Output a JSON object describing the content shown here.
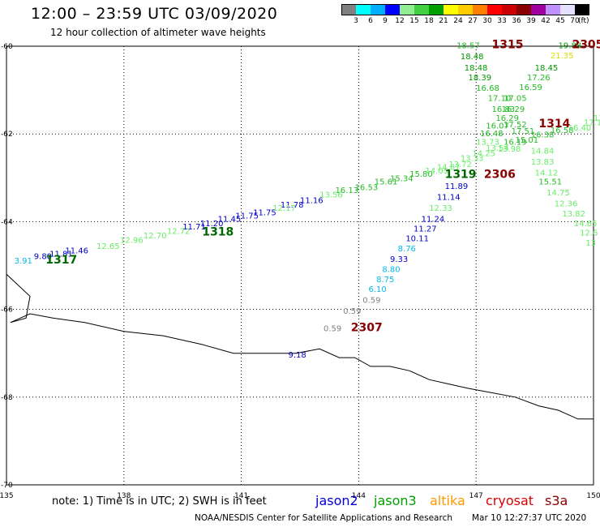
{
  "header": {
    "title": "12:00 – 23:59 UTC 03/09/2020",
    "subtitle": "12 hour collection of altimeter wave heights"
  },
  "colorbar": {
    "swatches": [
      "#808080",
      "#00ffff",
      "#00b0ff",
      "#0000ff",
      "#90ee90",
      "#40d040",
      "#00a000",
      "#ffff00",
      "#ffcc00",
      "#ff8000",
      "#ff0000",
      "#cc0000",
      "#8b0000",
      "#a000a0",
      "#c090ff",
      "#e6e0ff",
      "#000000"
    ],
    "ticks": [
      "3",
      "6",
      "9",
      "12",
      "15",
      "18",
      "21",
      "24",
      "27",
      "30",
      "33",
      "36",
      "39",
      "42",
      "45",
      "70"
    ],
    "unit": "(ft)"
  },
  "footer": {
    "note": "note:  1) Time is in UTC;  2) SWH is in feet",
    "satellites": [
      {
        "label": "jason2",
        "color": "#0000dd"
      },
      {
        "label": "jason3",
        "color": "#00a000"
      },
      {
        "label": "altika",
        "color": "#ff9900"
      },
      {
        "label": "cryosat",
        "color": "#dd0000"
      },
      {
        "label": "s3a",
        "color": "#880000"
      }
    ],
    "credit": "NOAA/NESDIS Center for Satellite Applications and Research",
    "timestamp": "Mar 10 12:27:37 UTC 2020"
  },
  "chart_data": {
    "type": "scatter",
    "title": "12:00 – 23:59 UTC 03/09/2020",
    "subtitle": "12 hour collection of altimeter wave heights",
    "unit": "ft",
    "xlim": [
      135,
      150
    ],
    "ylim": [
      -70,
      -60
    ],
    "x_ticks": [
      "135",
      "138",
      "141",
      "144",
      "147",
      "150"
    ],
    "y_ticks": [
      "-60",
      "-62",
      "-64",
      "-66",
      "-68",
      "-70"
    ],
    "grid": true,
    "coastline": [
      [
        135,
        -65.2
      ],
      [
        135.6,
        -65.7
      ],
      [
        135.5,
        -66.2
      ],
      [
        135.1,
        -66.3
      ],
      [
        135.6,
        -66.1
      ],
      [
        136.2,
        -66.2
      ],
      [
        137,
        -66.3
      ],
      [
        138,
        -66.5
      ],
      [
        139,
        -66.6
      ],
      [
        140,
        -66.8
      ],
      [
        140.8,
        -67.0
      ],
      [
        141.6,
        -67.0
      ],
      [
        142.4,
        -67.0
      ],
      [
        143.0,
        -66.9
      ],
      [
        143.5,
        -67.1
      ],
      [
        143.9,
        -67.1
      ],
      [
        144.3,
        -67.3
      ],
      [
        144.8,
        -67.3
      ],
      [
        145.3,
        -67.4
      ],
      [
        145.8,
        -67.6
      ],
      [
        146.3,
        -67.7
      ],
      [
        146.8,
        -67.8
      ],
      [
        147.4,
        -67.9
      ],
      [
        148.0,
        -68.0
      ],
      [
        148.6,
        -68.2
      ],
      [
        149.1,
        -68.3
      ],
      [
        149.6,
        -68.5
      ],
      [
        150,
        -68.5
      ]
    ],
    "labels": [
      {
        "text": "3.91",
        "lon": 135.2,
        "lat": -64.95,
        "color": "#00bbee"
      },
      {
        "text": "9.80",
        "lon": 135.7,
        "lat": -64.85,
        "color": "#0000cc"
      },
      {
        "text": "11.81",
        "lon": 136.1,
        "lat": -64.8,
        "color": "#0000cc"
      },
      {
        "text": "11.46",
        "lon": 136.5,
        "lat": -64.72,
        "color": "#0000cc"
      },
      {
        "text": "1317",
        "lon": 136,
        "lat": -64.95,
        "color": "#006600",
        "size": 14,
        "weight": "bold"
      },
      {
        "text": "12.65",
        "lon": 137.3,
        "lat": -64.62,
        "color": "#66ee66"
      },
      {
        "text": "12.96",
        "lon": 137.9,
        "lat": -64.48,
        "color": "#66ee66"
      },
      {
        "text": "12.70",
        "lon": 138.5,
        "lat": -64.38,
        "color": "#66ee66"
      },
      {
        "text": "12.72",
        "lon": 139.1,
        "lat": -64.28,
        "color": "#66ee66"
      },
      {
        "text": "11.71",
        "lon": 139.5,
        "lat": -64.18,
        "color": "#0000cc"
      },
      {
        "text": "11.20",
        "lon": 139.95,
        "lat": -64.1,
        "color": "#0000cc"
      },
      {
        "text": "1318",
        "lon": 140.0,
        "lat": -64.32,
        "color": "#006600",
        "size": 14,
        "weight": "bold"
      },
      {
        "text": "11.45",
        "lon": 140.4,
        "lat": -64.0,
        "color": "#0000cc"
      },
      {
        "text": "11.75",
        "lon": 140.85,
        "lat": -63.93,
        "color": "#0000cc"
      },
      {
        "text": "11.75",
        "lon": 141.3,
        "lat": -63.85,
        "color": "#0000cc"
      },
      {
        "text": "11.78",
        "lon": 142.0,
        "lat": -63.68,
        "color": "#0000cc"
      },
      {
        "text": "12.17",
        "lon": 141.8,
        "lat": -63.75,
        "color": "#66ee66"
      },
      {
        "text": "11.16",
        "lon": 142.5,
        "lat": -63.58,
        "color": "#0000cc"
      },
      {
        "text": "13.56",
        "lon": 143.0,
        "lat": -63.45,
        "color": "#66ee66"
      },
      {
        "text": "16.13",
        "lon": 143.4,
        "lat": -63.35,
        "color": "#22bb22"
      },
      {
        "text": "16.53",
        "lon": 143.9,
        "lat": -63.28,
        "color": "#22bb22"
      },
      {
        "text": "15.61",
        "lon": 144.4,
        "lat": -63.15,
        "color": "#22bb22"
      },
      {
        "text": "15.34",
        "lon": 144.8,
        "lat": -63.08,
        "color": "#22bb22"
      },
      {
        "text": "15.80",
        "lon": 145.3,
        "lat": -62.98,
        "color": "#22bb22"
      },
      {
        "text": "14.05",
        "lon": 145.7,
        "lat": -62.9,
        "color": "#66ee66"
      },
      {
        "text": "14.87",
        "lon": 146.0,
        "lat": -62.82,
        "color": "#66ee66"
      },
      {
        "text": "13.72",
        "lon": 146.3,
        "lat": -62.75,
        "color": "#66ee66"
      },
      {
        "text": "13.33",
        "lon": 146.6,
        "lat": -62.62,
        "color": "#66ee66"
      },
      {
        "text": "14.25",
        "lon": 146.9,
        "lat": -62.5,
        "color": "#66ee66"
      },
      {
        "text": "13.54",
        "lon": 147.25,
        "lat": -62.38,
        "color": "#66ee66"
      },
      {
        "text": "13.98",
        "lon": 147.55,
        "lat": -62.4,
        "color": "#66ee66"
      },
      {
        "text": "1319",
        "lon": 146.2,
        "lat": -63.0,
        "color": "#006600",
        "size": 14,
        "weight": "bold"
      },
      {
        "text": "18.57",
        "lon": 146.5,
        "lat": -60.05,
        "color": "#22bb22"
      },
      {
        "text": "18.48",
        "lon": 146.6,
        "lat": -60.3,
        "color": "#009900"
      },
      {
        "text": "18.48",
        "lon": 146.7,
        "lat": -60.55,
        "color": "#009900"
      },
      {
        "text": "18.39",
        "lon": 146.8,
        "lat": -60.78,
        "color": "#009900"
      },
      {
        "text": "16.68",
        "lon": 147.0,
        "lat": -61.02,
        "color": "#22bb22"
      },
      {
        "text": "17.10",
        "lon": 147.3,
        "lat": -61.25,
        "color": "#22bb22"
      },
      {
        "text": "17.05",
        "lon": 147.7,
        "lat": -61.25,
        "color": "#22bb22"
      },
      {
        "text": "16.59",
        "lon": 148.1,
        "lat": -61.0,
        "color": "#22bb22"
      },
      {
        "text": "17.26",
        "lon": 148.3,
        "lat": -60.78,
        "color": "#22bb22"
      },
      {
        "text": "18.45",
        "lon": 148.5,
        "lat": -60.55,
        "color": "#009900"
      },
      {
        "text": "19.88",
        "lon": 149.1,
        "lat": -60.05,
        "color": "#009900"
      },
      {
        "text": "21.35",
        "lon": 148.9,
        "lat": -60.28,
        "color": "#dddd00"
      },
      {
        "text": "1315",
        "lon": 147.4,
        "lat": -60.05,
        "color": "#880000",
        "size": 14,
        "weight": "bold"
      },
      {
        "text": "2305",
        "lon": 149.45,
        "lat": -60.05,
        "color": "#880000",
        "size": 14,
        "weight": "bold"
      },
      {
        "text": "16.83",
        "lon": 147.4,
        "lat": -61.5,
        "color": "#22bb22"
      },
      {
        "text": "16.29",
        "lon": 147.65,
        "lat": -61.5,
        "color": "#22bb22"
      },
      {
        "text": "16.29",
        "lon": 147.5,
        "lat": -61.7,
        "color": "#22bb22"
      },
      {
        "text": "16.07",
        "lon": 147.25,
        "lat": -61.88,
        "color": "#22bb22"
      },
      {
        "text": "17.52",
        "lon": 147.7,
        "lat": -61.85,
        "color": "#22bb22"
      },
      {
        "text": "1314",
        "lon": 148.6,
        "lat": -61.85,
        "color": "#880000",
        "size": 14,
        "weight": "bold"
      },
      {
        "text": "16.48",
        "lon": 147.1,
        "lat": -62.05,
        "color": "#22bb22"
      },
      {
        "text": "17.51",
        "lon": 147.9,
        "lat": -62.0,
        "color": "#22bb22"
      },
      {
        "text": "16.38",
        "lon": 148.4,
        "lat": -62.08,
        "color": "#22bb22"
      },
      {
        "text": "16.58",
        "lon": 148.9,
        "lat": -61.98,
        "color": "#22bb22"
      },
      {
        "text": "16.40",
        "lon": 149.35,
        "lat": -61.92,
        "color": "#66ee66"
      },
      {
        "text": "17.14",
        "lon": 149.75,
        "lat": -61.8,
        "color": "#66ee66"
      },
      {
        "text": "17",
        "lon": 150.0,
        "lat": -61.7,
        "color": "#66ee66"
      },
      {
        "text": "13.73",
        "lon": 147.0,
        "lat": -62.25,
        "color": "#66ee66"
      },
      {
        "text": "16.19",
        "lon": 147.7,
        "lat": -62.25,
        "color": "#22bb22"
      },
      {
        "text": "15.01",
        "lon": 148.0,
        "lat": -62.2,
        "color": "#22bb22"
      },
      {
        "text": "14.84",
        "lon": 148.4,
        "lat": -62.45,
        "color": "#66ee66"
      },
      {
        "text": "13.83",
        "lon": 148.4,
        "lat": -62.7,
        "color": "#66ee66"
      },
      {
        "text": "15.51",
        "lon": 148.6,
        "lat": -63.15,
        "color": "#22bb22"
      },
      {
        "text": "14.12",
        "lon": 148.5,
        "lat": -62.95,
        "color": "#66ee66"
      },
      {
        "text": "14.75",
        "lon": 148.8,
        "lat": -63.4,
        "color": "#66ee66"
      },
      {
        "text": "12.36",
        "lon": 149.0,
        "lat": -63.65,
        "color": "#66ee66"
      },
      {
        "text": "13.82",
        "lon": 149.2,
        "lat": -63.88,
        "color": "#66ee66"
      },
      {
        "text": "14.65",
        "lon": 149.5,
        "lat": -64.1,
        "color": "#66ee66"
      },
      {
        "text": "12.6",
        "lon": 149.65,
        "lat": -64.32,
        "color": "#66ee66"
      },
      {
        "text": "13",
        "lon": 149.8,
        "lat": -64.55,
        "color": "#66ee66"
      },
      {
        "text": "2306",
        "lon": 147.2,
        "lat": -63.0,
        "color": "#880000",
        "size": 14,
        "weight": "bold"
      },
      {
        "text": "11.89",
        "lon": 146.2,
        "lat": -63.25,
        "color": "#0000cc"
      },
      {
        "text": "11.14",
        "lon": 146.0,
        "lat": -63.5,
        "color": "#0000cc"
      },
      {
        "text": "12.33",
        "lon": 145.8,
        "lat": -63.75,
        "color": "#66ee66"
      },
      {
        "text": "11.24",
        "lon": 145.6,
        "lat": -64.0,
        "color": "#0000cc"
      },
      {
        "text": "11.27",
        "lon": 145.4,
        "lat": -64.22,
        "color": "#0000cc"
      },
      {
        "text": "10.11",
        "lon": 145.2,
        "lat": -64.45,
        "color": "#0000cc"
      },
      {
        "text": "8.76",
        "lon": 145.0,
        "lat": -64.68,
        "color": "#00bbee"
      },
      {
        "text": "9.33",
        "lon": 144.8,
        "lat": -64.92,
        "color": "#0000cc"
      },
      {
        "text": "8.80",
        "lon": 144.6,
        "lat": -65.15,
        "color": "#00bbee"
      },
      {
        "text": "8.75",
        "lon": 144.45,
        "lat": -65.38,
        "color": "#00bbee"
      },
      {
        "text": "6.10",
        "lon": 144.25,
        "lat": -65.6,
        "color": "#00bbee"
      },
      {
        "text": "0.59",
        "lon": 144.1,
        "lat": -65.85,
        "color": "#808080"
      },
      {
        "text": "0.59",
        "lon": 143.6,
        "lat": -66.1,
        "color": "#808080"
      },
      {
        "text": "0.59",
        "lon": 143.1,
        "lat": -66.5,
        "color": "#808080"
      },
      {
        "text": "2307",
        "lon": 143.8,
        "lat": -66.5,
        "color": "#880000",
        "size": 14,
        "weight": "bold"
      },
      {
        "text": "9.18",
        "lon": 142.2,
        "lat": -67.1,
        "color": "#0000cc"
      }
    ]
  }
}
